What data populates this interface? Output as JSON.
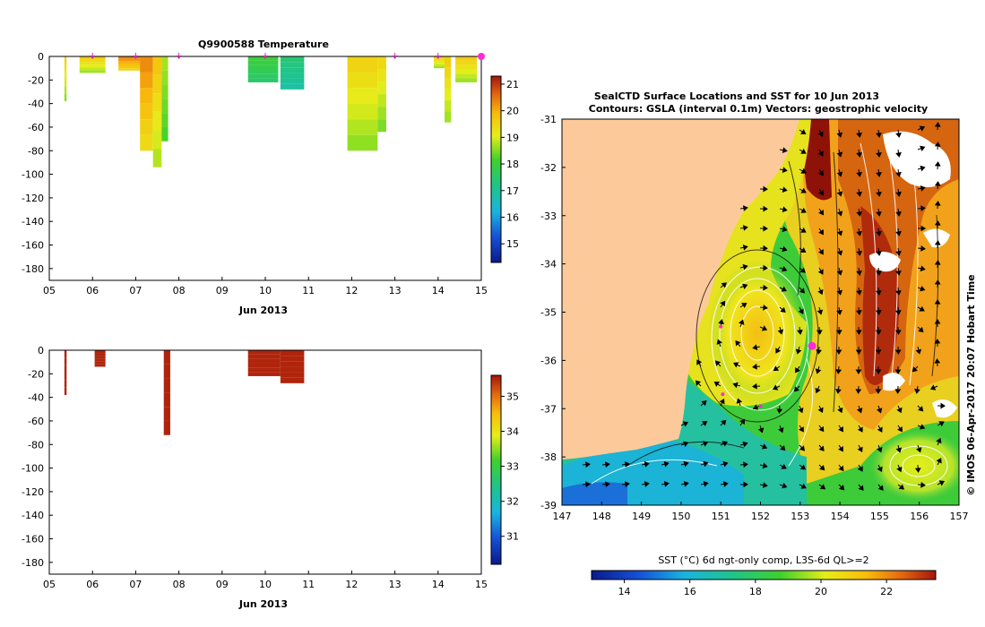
{
  "chart_data": [
    {
      "id": "temperature_profile",
      "type": "heatmap",
      "title": "Q9900588  Temperature",
      "xlabel": "Jun 2013",
      "ylabel": "",
      "xlim": [
        5,
        15
      ],
      "ylim": [
        -190,
        0
      ],
      "x_ticks": [
        "05",
        "06",
        "07",
        "08",
        "09",
        "10",
        "11",
        "12",
        "13",
        "14",
        "15"
      ],
      "y_ticks": [
        "0",
        "-20",
        "-40",
        "-60",
        "-80",
        "-100",
        "-120",
        "-140",
        "-160",
        "-180"
      ],
      "colorbar": {
        "min": 14.3,
        "max": 21.3,
        "ticks": [
          "15",
          "16",
          "17",
          "18",
          "19",
          "20",
          "21"
        ]
      },
      "profile_markers_x": [
        6.0,
        7.0,
        8.0,
        10.0,
        13.0,
        14.0,
        15.0
      ],
      "profiles": [
        {
          "x0": 5.35,
          "x1": 5.4,
          "depth": 38,
          "value": 19.5
        },
        {
          "x0": 5.7,
          "x1": 6.3,
          "depth": 14,
          "value": 19.6
        },
        {
          "x0": 6.6,
          "x1": 7.1,
          "depth": 12,
          "value": 20.4
        },
        {
          "x0": 7.1,
          "x1": 7.3,
          "depth": 14,
          "value": 20.2
        },
        {
          "x0": 7.1,
          "x1": 7.4,
          "depth": 80,
          "value": 20.3
        },
        {
          "x0": 7.4,
          "x1": 7.6,
          "depth": 94,
          "value": 19.7
        },
        {
          "x0": 7.6,
          "x1": 7.75,
          "depth": 72,
          "value": 18.7
        },
        {
          "x0": 9.6,
          "x1": 10.3,
          "depth": 22,
          "value": 18.0
        },
        {
          "x0": 10.35,
          "x1": 10.9,
          "depth": 28,
          "value": 17.4
        },
        {
          "x0": 11.9,
          "x1": 12.6,
          "depth": 80,
          "value": 19.5
        },
        {
          "x0": 12.6,
          "x1": 12.8,
          "depth": 64,
          "value": 19.4
        },
        {
          "x0": 13.9,
          "x1": 14.15,
          "depth": 10,
          "value": 19.6
        },
        {
          "x0": 14.15,
          "x1": 14.3,
          "depth": 56,
          "value": 19.6
        },
        {
          "x0": 14.4,
          "x1": 14.9,
          "depth": 22,
          "value": 19.6
        }
      ]
    },
    {
      "id": "salinity_profile",
      "type": "heatmap",
      "title": "",
      "xlabel": "Jun 2013",
      "xlim": [
        5,
        15
      ],
      "ylim": [
        -190,
        0
      ],
      "x_ticks": [
        "05",
        "06",
        "07",
        "08",
        "09",
        "10",
        "11",
        "12",
        "13",
        "14",
        "15"
      ],
      "y_ticks": [
        "0",
        "-20",
        "-40",
        "-60",
        "-80",
        "-100",
        "-120",
        "-140",
        "-160",
        "-180"
      ],
      "colorbar": {
        "min": 30.2,
        "max": 35.6,
        "ticks": [
          "31",
          "32",
          "33",
          "34",
          "35"
        ]
      },
      "profiles": [
        {
          "x0": 5.35,
          "x1": 5.4,
          "depth": 38,
          "value": 35.5
        },
        {
          "x0": 6.05,
          "x1": 6.3,
          "depth": 14,
          "value": 35.5
        },
        {
          "x0": 7.65,
          "x1": 7.8,
          "depth": 72,
          "value": 35.5
        },
        {
          "x0": 9.6,
          "x1": 10.35,
          "depth": 22,
          "value": 35.5
        },
        {
          "x0": 10.35,
          "x1": 10.9,
          "depth": 28,
          "value": 35.5
        }
      ]
    },
    {
      "id": "sst_map",
      "type": "heatmap",
      "title": "SealCTD Surface Locations and SST for 10 Jun 2013",
      "subtitle": "Contours: GSLA (interval 0.1m) Vectors: geostrophic velocity",
      "xlim": [
        147,
        157
      ],
      "ylim": [
        -39,
        -31
      ],
      "x_ticks": [
        "147",
        "148",
        "149",
        "150",
        "151",
        "152",
        "153",
        "154",
        "155",
        "156",
        "157"
      ],
      "y_ticks": [
        "-31",
        "-32",
        "-33",
        "-34",
        "-35",
        "-36",
        "-37",
        "-38",
        "-39"
      ],
      "colorbar": {
        "label": "SST (°C) 6d ngt-only comp, L3S-6d QL>=2",
        "min": 13.0,
        "max": 23.5,
        "ticks": [
          "14",
          "16",
          "18",
          "20",
          "22"
        ]
      },
      "current_location": {
        "lon": 153.3,
        "lat": -35.7
      },
      "previous_locations": [
        {
          "lon": 152.0,
          "lat": -36.95
        },
        {
          "lon": 151.05,
          "lat": -36.7
        },
        {
          "lon": 151.0,
          "lat": -35.3
        }
      ],
      "side_label": "© IMOS 06-Apr-2017 20:07 Hobart Time"
    }
  ]
}
